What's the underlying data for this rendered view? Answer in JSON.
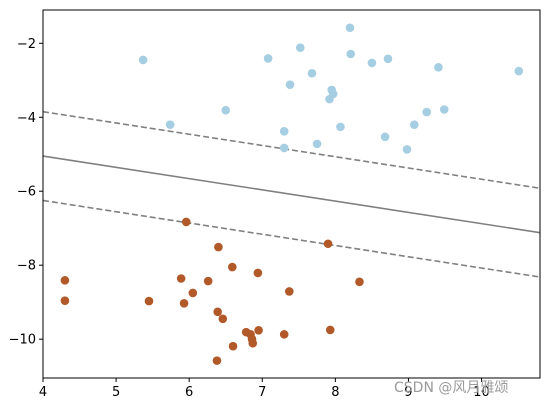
{
  "watermark": "CSDN @风月雅颂",
  "chart_data": {
    "type": "scatter",
    "title": "",
    "xlabel": "",
    "ylabel": "",
    "xlim": [
      4,
      10.8
    ],
    "ylim": [
      -11.05,
      -1.1
    ],
    "xticks": [
      4,
      5,
      6,
      7,
      8,
      9,
      10
    ],
    "yticks": [
      -10,
      -8,
      -6,
      -4,
      -2
    ],
    "grid": false,
    "legend": "none",
    "series": [
      {
        "class": 0,
        "color": "#a6cee3",
        "points": [
          [
            5.37,
            -2.45
          ],
          [
            5.74,
            -4.2
          ],
          [
            6.5,
            -3.81
          ],
          [
            7.08,
            -2.41
          ],
          [
            7.3,
            -4.38
          ],
          [
            7.3,
            -4.83
          ],
          [
            7.38,
            -3.12
          ],
          [
            7.52,
            -2.12
          ],
          [
            7.68,
            -2.81
          ],
          [
            7.75,
            -4.72
          ],
          [
            7.92,
            -3.51
          ],
          [
            7.95,
            -3.26
          ],
          [
            7.97,
            -3.37
          ],
          [
            8.07,
            -4.26
          ],
          [
            8.2,
            -1.58
          ],
          [
            8.21,
            -2.29
          ],
          [
            8.5,
            -2.53
          ],
          [
            8.68,
            -4.53
          ],
          [
            8.72,
            -2.42
          ],
          [
            8.98,
            -4.87
          ],
          [
            9.08,
            -4.2
          ],
          [
            9.25,
            -3.86
          ],
          [
            9.41,
            -2.65
          ],
          [
            9.49,
            -3.79
          ],
          [
            10.51,
            -2.75
          ]
        ]
      },
      {
        "class": 1,
        "color": "#b15928",
        "points": [
          [
            4.3,
            -8.41
          ],
          [
            4.3,
            -8.96
          ],
          [
            5.45,
            -8.97
          ],
          [
            5.89,
            -8.36
          ],
          [
            5.93,
            -9.03
          ],
          [
            5.96,
            -6.83
          ],
          [
            6.05,
            -8.75
          ],
          [
            6.26,
            -8.43
          ],
          [
            6.38,
            -10.58
          ],
          [
            6.39,
            -9.26
          ],
          [
            6.4,
            -7.51
          ],
          [
            6.46,
            -9.45
          ],
          [
            6.59,
            -8.05
          ],
          [
            6.6,
            -10.19
          ],
          [
            6.78,
            -9.81
          ],
          [
            6.84,
            -9.87
          ],
          [
            6.86,
            -10.0
          ],
          [
            6.87,
            -10.11
          ],
          [
            6.94,
            -8.21
          ],
          [
            6.95,
            -9.76
          ],
          [
            7.3,
            -9.87
          ],
          [
            7.37,
            -8.71
          ],
          [
            7.9,
            -7.42
          ],
          [
            7.93,
            -9.75
          ],
          [
            8.33,
            -8.45
          ]
        ]
      }
    ],
    "lines": [
      {
        "role": "decision-boundary",
        "style": "solid",
        "color": "#808080",
        "points": [
          [
            4,
            -5.05
          ],
          [
            10.8,
            -7.12
          ]
        ]
      },
      {
        "role": "margin-upper",
        "style": "dashed",
        "color": "#808080",
        "points": [
          [
            4,
            -3.85
          ],
          [
            10.8,
            -5.92
          ]
        ]
      },
      {
        "role": "margin-lower",
        "style": "dashed",
        "color": "#808080",
        "points": [
          [
            4,
            -6.25
          ],
          [
            10.8,
            -8.32
          ]
        ]
      }
    ]
  }
}
